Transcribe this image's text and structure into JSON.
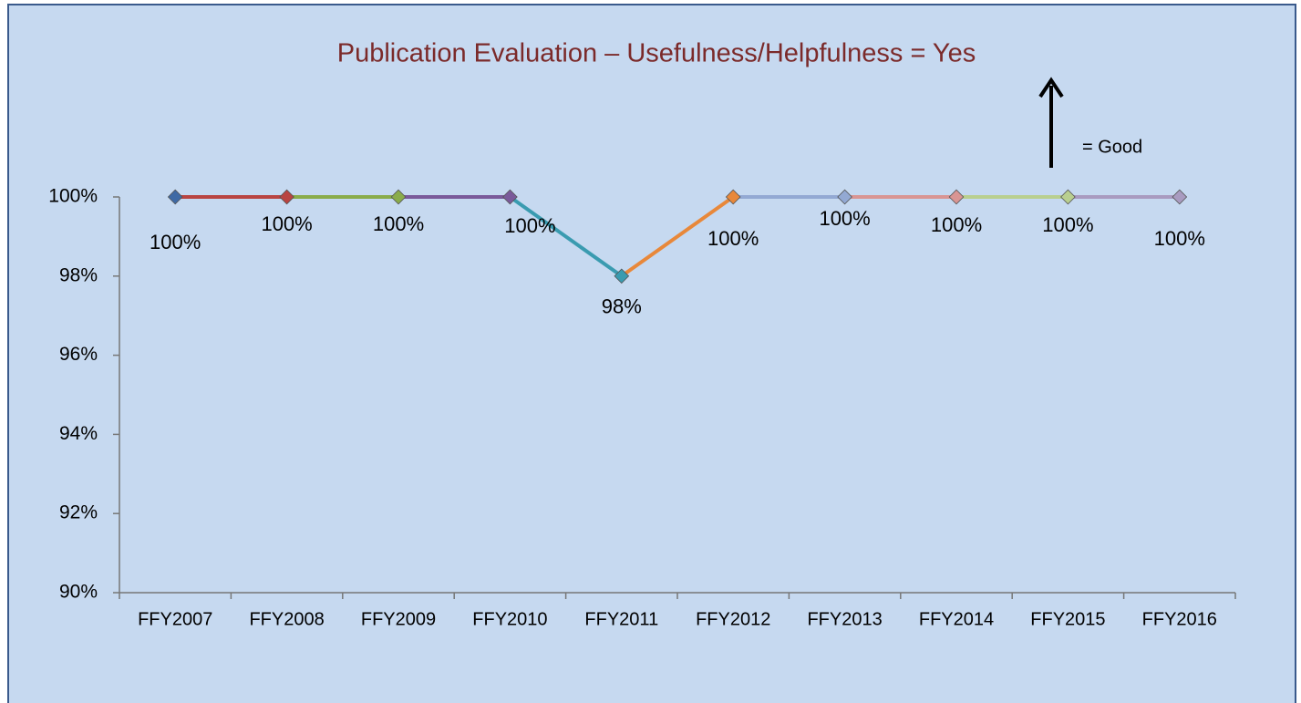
{
  "chart_data": {
    "type": "line",
    "title": "Publication Evaluation – Usefulness/Helpfulness = Yes",
    "annotation": "=  Good",
    "categories": [
      "FFY2007",
      "FFY2008",
      "FFY2009",
      "FFY2010",
      "FFY2011",
      "FFY2012",
      "FFY2013",
      "FFY2014",
      "FFY2015",
      "FFY2016"
    ],
    "values": [
      100,
      100,
      100,
      100,
      98,
      100,
      100,
      100,
      100,
      100
    ],
    "value_labels": [
      "100%",
      "100%",
      "100%",
      "100%",
      "98%",
      "100%",
      "100%",
      "100%",
      "100%",
      "100%"
    ],
    "colors": [
      "#3f6aa5",
      "#b94441",
      "#8aac4a",
      "#7a5a9a",
      "#3a9bb0",
      "#e8883a",
      "#93a9d3",
      "#d99593",
      "#b9cf8f",
      "#a99bc0"
    ],
    "ylim": [
      90,
      100
    ],
    "yticks": [
      {
        "value": 90,
        "label": "90%"
      },
      {
        "value": 92,
        "label": "92%"
      },
      {
        "value": 94,
        "label": "94%"
      },
      {
        "value": 96,
        "label": "96%"
      },
      {
        "value": 98,
        "label": "98%"
      },
      {
        "value": 100,
        "label": "100%"
      }
    ],
    "grid": false
  }
}
